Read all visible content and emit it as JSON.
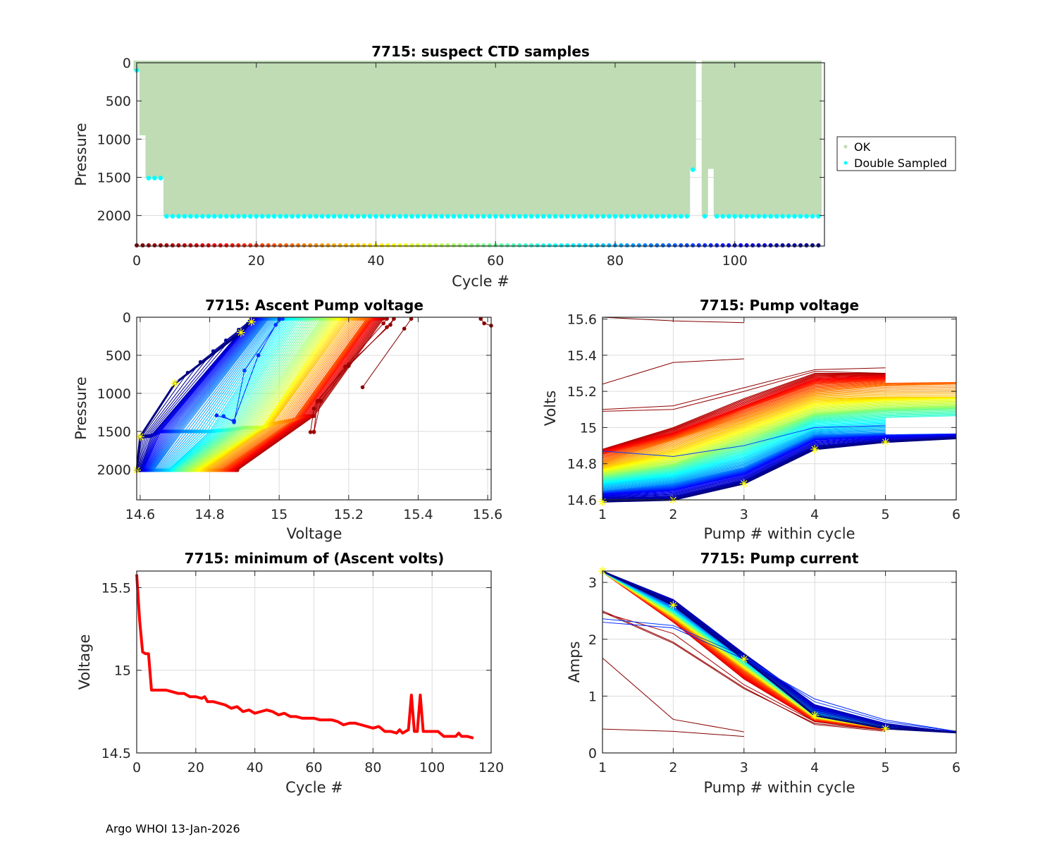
{
  "footer": "Argo WHOI 13-Jan-2026",
  "chart_data": [
    {
      "id": "suspect-ctd",
      "type": "scatter",
      "title": "7715: suspect CTD samples",
      "xlabel": "Cycle #",
      "ylabel": "Pressure",
      "xlim": [
        0,
        115
      ],
      "ylim": [
        2400,
        0
      ],
      "y_reversed": true,
      "xticks": [
        0,
        20,
        40,
        60,
        80,
        100
      ],
      "yticks": [
        0,
        500,
        1000,
        1500,
        2000
      ],
      "grid": true,
      "legend": {
        "position": "right",
        "entries": [
          {
            "label": "OK",
            "color": "#bfdcb5"
          },
          {
            "label": "Double Sampled",
            "color": "#00ffff"
          }
        ]
      },
      "cycles_first": 0,
      "cycles_last": 114,
      "profile_max_pressure": {
        "default": 2010,
        "overrides": {
          "0": 100,
          "1": 950,
          "2": 1510,
          "3": 1510,
          "4": 1510,
          "93": 1400,
          "94": null,
          "95": 2010,
          "96": 1390
        }
      },
      "double_sampled_pressure": {
        "default": 2010,
        "overrides": {
          "0": 100,
          "1": null,
          "2": 1510,
          "3": 1510,
          "4": 1510,
          "93": 1400,
          "94": null,
          "96": null
        }
      },
      "cycle_marker_row_pressure": 2400,
      "cycle_marker_colormap": "jet-reversed"
    },
    {
      "id": "ascent-pump-voltage",
      "type": "line",
      "title": "7715: Ascent Pump voltage",
      "xlabel": "Voltage",
      "ylabel": "Pressure",
      "xlim": [
        14.59,
        15.61
      ],
      "ylim": [
        2400,
        0
      ],
      "y_reversed": true,
      "xticks": [
        14.6,
        14.8,
        15,
        15.2,
        15.4,
        15.6
      ],
      "yticks": [
        0,
        500,
        1000,
        1500,
        2000
      ],
      "grid": true,
      "colormap": "jet-reversed-by-cycle",
      "profiles": [
        {
          "cycle": 0,
          "points": [
            [
              15.58,
              20
            ],
            [
              15.59,
              80
            ],
            [
              15.61,
              110
            ]
          ]
        },
        {
          "cycle": 1,
          "points": [
            [
              15.24,
              920
            ],
            [
              15.36,
              150
            ],
            [
              15.38,
              20
            ]
          ]
        },
        {
          "cycle": 2,
          "points": [
            [
              15.09,
              1510
            ],
            [
              15.1,
              1200
            ],
            [
              15.11,
              1100
            ],
            [
              15.2,
              620
            ],
            [
              15.32,
              100
            ],
            [
              15.33,
              20
            ]
          ]
        },
        {
          "cycle": 3,
          "points": [
            [
              15.1,
              1510
            ],
            [
              15.12,
              1100
            ],
            [
              15.2,
              640
            ],
            [
              15.31,
              130
            ],
            [
              15.33,
              20
            ]
          ]
        },
        {
          "cycle": 4,
          "points": [
            [
              15.1,
              1505
            ],
            [
              15.11,
              1110
            ],
            [
              15.19,
              650
            ],
            [
              15.3,
              80
            ],
            [
              15.31,
              20
            ]
          ]
        },
        {
          "cycle": 5,
          "points": [
            [
              14.88,
              2010
            ],
            [
              15.1,
              1300
            ],
            [
              15.3,
              20
            ]
          ]
        },
        {
          "cycle": 15,
          "points": [
            [
              14.86,
              2010
            ],
            [
              15.07,
              1300
            ],
            [
              15.27,
              20
            ]
          ]
        },
        {
          "cycle": 25,
          "points": [
            [
              14.83,
              2010
            ],
            [
              15.04,
              1350
            ],
            [
              15.25,
              20
            ]
          ]
        },
        {
          "cycle": 35,
          "points": [
            [
              14.79,
              2010
            ],
            [
              14.98,
              1400
            ],
            [
              15.2,
              20
            ]
          ]
        },
        {
          "cycle": 45,
          "points": [
            [
              14.76,
              2010
            ],
            [
              14.95,
              1450
            ],
            [
              15.16,
              20
            ]
          ]
        },
        {
          "cycle": 55,
          "points": [
            [
              14.73,
              2010
            ],
            [
              14.9,
              1450
            ],
            [
              15.12,
              20
            ]
          ]
        },
        {
          "cycle": 65,
          "points": [
            [
              14.7,
              2010
            ],
            [
              14.85,
              1480
            ],
            [
              15.06,
              20
            ]
          ]
        },
        {
          "cycle": 75,
          "points": [
            [
              14.68,
              2010
            ],
            [
              14.8,
              1500
            ],
            [
              15.01,
              20
            ]
          ]
        },
        {
          "cycle": 85,
          "points": [
            [
              14.64,
              2010
            ],
            [
              14.72,
              1500
            ],
            [
              14.97,
              20
            ]
          ]
        },
        {
          "cycle": 93,
          "points": [
            [
              14.84,
              1300
            ],
            [
              14.87,
              1380
            ],
            [
              14.9,
              700
            ],
            [
              14.99,
              100
            ],
            [
              15.01,
              20
            ]
          ]
        },
        {
          "cycle": 96,
          "points": [
            [
              14.82,
              1290
            ],
            [
              14.87,
              1360
            ],
            [
              14.94,
              500
            ],
            [
              15.0,
              20
            ]
          ]
        },
        {
          "cycle": 100,
          "points": [
            [
              14.61,
              2010
            ],
            [
              14.66,
              1500
            ],
            [
              14.93,
              20
            ]
          ]
        },
        {
          "cycle": 108,
          "points": [
            [
              14.6,
              2010
            ],
            [
              14.63,
              1560
            ],
            [
              14.92,
              20
            ]
          ]
        },
        {
          "cycle": 114,
          "points": [
            [
              14.59,
              2010
            ],
            [
              14.6,
              1570
            ],
            [
              14.7,
              870
            ],
            [
              14.89,
              200
            ],
            [
              14.92,
              60
            ]
          ]
        }
      ],
      "latest_markers": [
        [
          14.92,
          60
        ],
        [
          14.89,
          200
        ],
        [
          14.7,
          870
        ],
        [
          14.6,
          1570
        ],
        [
          14.59,
          2010
        ]
      ]
    },
    {
      "id": "pump-voltage",
      "type": "line",
      "title": "7715: Pump voltage",
      "xlabel": "Pump # within cycle",
      "ylabel": "Volts",
      "xlim": [
        1,
        6
      ],
      "ylim": [
        14.6,
        15.61
      ],
      "xticks": [
        1,
        2,
        3,
        4,
        5,
        6
      ],
      "yticks": [
        14.6,
        14.8,
        15,
        15.2,
        15.4,
        15.6
      ],
      "grid": true,
      "colormap": "jet-reversed-by-cycle",
      "series": [
        {
          "cycle": 0,
          "values": [
            15.61,
            15.59,
            15.58
          ]
        },
        {
          "cycle": 1,
          "values": [
            15.24,
            15.36,
            15.38
          ]
        },
        {
          "cycle": 2,
          "values": [
            15.1,
            15.12,
            15.22,
            15.32,
            15.33
          ]
        },
        {
          "cycle": 3,
          "values": [
            15.09,
            15.1,
            15.2,
            15.31,
            15.3
          ]
        },
        {
          "cycle": 5,
          "values": [
            14.88,
            15.0,
            15.16,
            15.3,
            15.3
          ]
        },
        {
          "cycle": 12,
          "values": [
            14.87,
            14.97,
            15.12,
            15.27,
            15.28
          ]
        },
        {
          "cycle": 20,
          "values": [
            14.85,
            14.95,
            15.1,
            15.24,
            15.26
          ]
        },
        {
          "cycle": 28,
          "values": [
            14.81,
            14.93,
            15.06,
            15.2,
            15.23,
            15.24
          ]
        },
        {
          "cycle": 36,
          "values": [
            14.78,
            14.88,
            15.02,
            15.16,
            15.17,
            15.17
          ]
        },
        {
          "cycle": 44,
          "values": [
            14.76,
            14.84,
            14.98,
            15.12,
            15.15,
            15.16
          ]
        },
        {
          "cycle": 52,
          "values": [
            14.74,
            14.8,
            14.94,
            15.08,
            15.11,
            15.12
          ]
        },
        {
          "cycle": 60,
          "values": [
            14.72,
            14.78,
            14.9,
            15.06,
            15.09,
            15.1
          ]
        },
        {
          "cycle": 68,
          "values": [
            14.7,
            14.75,
            14.86,
            15.03,
            15.05,
            15.06
          ]
        },
        {
          "cycle": 76,
          "values": [
            14.68,
            14.72,
            14.82,
            14.99,
            15.01
          ]
        },
        {
          "cycle": 84,
          "values": [
            14.65,
            14.69,
            14.78,
            14.96,
            14.97
          ]
        },
        {
          "cycle": 93,
          "values": [
            14.87,
            14.84,
            14.9,
            15.0,
            15.01
          ]
        },
        {
          "cycle": 100,
          "values": [
            14.63,
            14.65,
            14.74,
            14.93,
            14.95,
            14.96
          ]
        },
        {
          "cycle": 107,
          "values": [
            14.61,
            14.62,
            14.71,
            14.9,
            14.93,
            14.95
          ]
        },
        {
          "cycle": 114,
          "values": [
            14.59,
            14.6,
            14.69,
            14.88,
            14.92,
            14.94
          ]
        }
      ],
      "latest_markers": [
        [
          1,
          14.59
        ],
        [
          2,
          14.6
        ],
        [
          3,
          14.69
        ],
        [
          4,
          14.88
        ],
        [
          5,
          14.92
        ]
      ]
    },
    {
      "id": "min-ascent-volts",
      "type": "line",
      "title": "7715: minimum of (Ascent volts)",
      "xlabel": "Cycle #",
      "ylabel": "Voltage",
      "xlim": [
        0,
        120
      ],
      "ylim": [
        14.5,
        15.6
      ],
      "xticks": [
        0,
        20,
        40,
        60,
        80,
        100,
        120
      ],
      "yticks": [
        14.5,
        15,
        15.5
      ],
      "grid": true,
      "color": "#ff0000",
      "x": [
        0,
        1,
        2,
        3,
        4,
        5,
        6,
        8,
        10,
        12,
        14,
        16,
        18,
        20,
        22,
        23,
        24,
        26,
        28,
        30,
        32,
        34,
        36,
        38,
        40,
        42,
        44,
        46,
        48,
        50,
        52,
        54,
        56,
        58,
        60,
        62,
        64,
        66,
        68,
        70,
        72,
        74,
        76,
        78,
        80,
        82,
        84,
        86,
        88,
        89,
        90,
        91,
        92,
        93,
        94,
        95,
        96,
        97,
        98,
        100,
        102,
        104,
        106,
        108,
        109,
        110,
        112,
        114
      ],
      "values": [
        15.58,
        15.3,
        15.11,
        15.1,
        15.1,
        14.88,
        14.88,
        14.88,
        14.88,
        14.87,
        14.86,
        14.86,
        14.84,
        14.84,
        14.83,
        14.84,
        14.81,
        14.81,
        14.8,
        14.79,
        14.77,
        14.78,
        14.75,
        14.76,
        14.74,
        14.75,
        14.76,
        14.75,
        14.73,
        14.74,
        14.72,
        14.72,
        14.71,
        14.71,
        14.71,
        14.7,
        14.7,
        14.7,
        14.69,
        14.67,
        14.68,
        14.68,
        14.67,
        14.66,
        14.65,
        14.66,
        14.63,
        14.63,
        14.62,
        14.64,
        14.62,
        14.63,
        14.64,
        14.85,
        14.63,
        14.63,
        14.85,
        14.63,
        14.63,
        14.63,
        14.63,
        14.6,
        14.6,
        14.6,
        14.62,
        14.6,
        14.6,
        14.59
      ]
    },
    {
      "id": "pump-current",
      "type": "line",
      "title": "7715: Pump current",
      "xlabel": "Pump # within cycle",
      "ylabel": "Amps",
      "xlim": [
        1,
        6
      ],
      "ylim": [
        0,
        3.2
      ],
      "xticks": [
        1,
        2,
        3,
        4,
        5,
        6
      ],
      "yticks": [
        0,
        1,
        2,
        3
      ],
      "grid": true,
      "colormap": "jet-reversed-by-cycle",
      "series": [
        {
          "cycle": 0,
          "values": [
            0.42,
            0.38,
            0.29
          ]
        },
        {
          "cycle": 1,
          "values": [
            1.67,
            0.59,
            0.37
          ]
        },
        {
          "cycle": 2,
          "values": [
            2.5,
            1.95,
            1.15,
            0.5,
            0.38
          ]
        },
        {
          "cycle": 3,
          "values": [
            2.48,
            1.93,
            1.13,
            0.52,
            0.4
          ]
        },
        {
          "cycle": 4,
          "values": [
            2.47,
            2.1,
            1.2,
            0.55,
            0.4
          ]
        },
        {
          "cycle": 10,
          "values": [
            3.18,
            2.3,
            1.3,
            0.55,
            0.4
          ]
        },
        {
          "cycle": 25,
          "values": [
            3.18,
            2.35,
            1.45,
            0.6,
            0.42
          ]
        },
        {
          "cycle": 40,
          "values": [
            3.18,
            2.4,
            1.5,
            0.62,
            0.43,
            0.37
          ]
        },
        {
          "cycle": 55,
          "values": [
            3.18,
            2.45,
            1.55,
            0.65,
            0.44,
            0.36
          ]
        },
        {
          "cycle": 70,
          "values": [
            3.19,
            2.5,
            1.6,
            0.68,
            0.45,
            0.37
          ]
        },
        {
          "cycle": 85,
          "values": [
            3.19,
            2.55,
            1.65,
            0.72,
            0.47,
            0.37
          ]
        },
        {
          "cycle": 93,
          "values": [
            2.36,
            2.24,
            1.7,
            0.9,
            0.55,
            0.38
          ]
        },
        {
          "cycle": 96,
          "values": [
            2.3,
            2.2,
            1.65,
            0.95,
            0.58,
            0.38
          ]
        },
        {
          "cycle": 100,
          "values": [
            3.2,
            2.65,
            1.72,
            0.8,
            0.5,
            0.37
          ]
        },
        {
          "cycle": 108,
          "values": [
            3.2,
            2.7,
            1.75,
            0.85,
            0.52,
            0.36
          ]
        },
        {
          "cycle": 114,
          "values": [
            3.2,
            2.6,
            1.65,
            0.66,
            0.43,
            0.36
          ]
        }
      ],
      "latest_markers": [
        [
          1,
          3.2
        ],
        [
          2,
          2.6
        ],
        [
          3,
          1.65
        ],
        [
          4,
          0.66
        ],
        [
          5,
          0.43
        ]
      ]
    }
  ]
}
